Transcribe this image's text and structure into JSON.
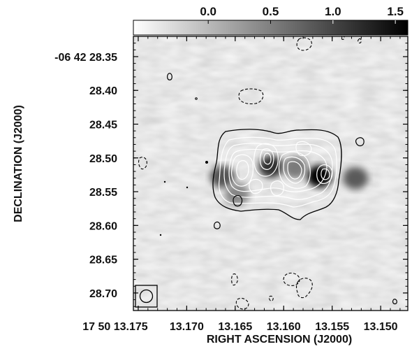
{
  "chart_data": {
    "type": "heatmap",
    "title": "",
    "xlabel": "RIGHT ASCENSION (J2000)",
    "ylabel": "DECLINATION (J2000)",
    "x_ticks": [
      {
        "value": 13.175,
        "label": "17 50 13.175"
      },
      {
        "value": 13.17,
        "label": "13.170"
      },
      {
        "value": 13.165,
        "label": "13.165"
      },
      {
        "value": 13.16,
        "label": "13.160"
      },
      {
        "value": 13.155,
        "label": "13.155"
      },
      {
        "value": 13.15,
        "label": "13.150"
      }
    ],
    "y_ticks": [
      {
        "value": 28.35,
        "label": "-06 42 28.35"
      },
      {
        "value": 28.4,
        "label": "28.40"
      },
      {
        "value": 28.45,
        "label": "28.45"
      },
      {
        "value": 28.5,
        "label": "28.50"
      },
      {
        "value": 28.55,
        "label": "28.55"
      },
      {
        "value": 28.6,
        "label": "28.60"
      },
      {
        "value": 28.65,
        "label": "28.65"
      },
      {
        "value": 28.7,
        "label": "28.70"
      }
    ],
    "xlim": [
      13.1755,
      13.1472
    ],
    "ylim": [
      28.726,
      28.32
    ],
    "colorbar": {
      "range": [
        -0.6,
        1.6
      ],
      "ticks": [
        {
          "value": 0.0,
          "label": "0.0"
        },
        {
          "value": 0.5,
          "label": "0.5"
        },
        {
          "value": 1.0,
          "label": "1.0"
        },
        {
          "value": 1.5,
          "label": "1.5"
        }
      ],
      "colormap": "grayscale (white low, black high)"
    },
    "contours": {
      "dashed": "negative levels",
      "solid_black": "lowest positive level",
      "solid_white": "higher positive levels"
    },
    "emission_peaks": [
      {
        "ra": 13.1663,
        "dec": 28.528,
        "intensity": 0.9
      },
      {
        "ra": 13.1613,
        "dec": 28.513,
        "intensity": 1.15
      },
      {
        "ra": 13.1563,
        "dec": 28.527,
        "intensity": 1.55
      },
      {
        "ra": 13.1526,
        "dec": 28.53,
        "intensity": 0.85
      },
      {
        "ra": 13.1648,
        "dec": 28.554,
        "intensity": 0.5
      },
      {
        "ra": 13.1588,
        "dec": 28.514,
        "intensity": 0.6
      }
    ],
    "beam": {
      "ra": 13.1735,
      "dec": 28.7125
    }
  },
  "colors": {
    "low": "#ffffff",
    "high": "#000000",
    "background_gray": "#c8c8c8"
  }
}
